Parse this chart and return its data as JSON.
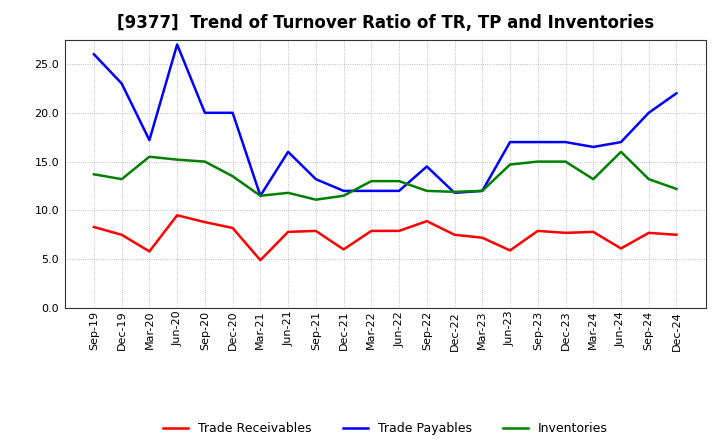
{
  "title": "[9377]  Trend of Turnover Ratio of TR, TP and Inventories",
  "x_labels": [
    "Sep-19",
    "Dec-19",
    "Mar-20",
    "Jun-20",
    "Sep-20",
    "Dec-20",
    "Mar-21",
    "Jun-21",
    "Sep-21",
    "Dec-21",
    "Mar-22",
    "Jun-22",
    "Sep-22",
    "Dec-22",
    "Mar-23",
    "Jun-23",
    "Sep-23",
    "Dec-23",
    "Mar-24",
    "Jun-24",
    "Sep-24",
    "Dec-24"
  ],
  "trade_receivables": [
    8.3,
    7.5,
    5.8,
    9.5,
    8.8,
    8.2,
    4.9,
    7.8,
    7.9,
    6.0,
    7.9,
    7.9,
    8.9,
    7.5,
    7.2,
    5.9,
    7.9,
    7.7,
    7.8,
    6.1,
    7.7,
    7.5
  ],
  "trade_payables": [
    26.0,
    23.0,
    17.2,
    27.0,
    20.0,
    20.0,
    11.5,
    16.0,
    13.2,
    12.0,
    12.0,
    12.0,
    14.5,
    11.8,
    12.0,
    17.0,
    17.0,
    17.0,
    16.5,
    17.0,
    20.0,
    22.0
  ],
  "inventories": [
    13.7,
    13.2,
    15.5,
    15.2,
    15.0,
    13.5,
    11.5,
    11.8,
    11.1,
    11.5,
    13.0,
    13.0,
    12.0,
    11.9,
    12.0,
    14.7,
    15.0,
    15.0,
    13.2,
    16.0,
    13.2,
    12.2
  ],
  "ylim": [
    0.0,
    27.5
  ],
  "yticks": [
    0.0,
    5.0,
    10.0,
    15.0,
    20.0,
    25.0
  ],
  "color_tr": "#ff0000",
  "color_tp": "#0000ff",
  "color_inv": "#008000",
  "background_color": "#ffffff",
  "plot_bg_color": "#ffffff",
  "grid_color": "#aaaaaa",
  "title_fontsize": 12,
  "tick_fontsize": 8,
  "legend_labels": [
    "Trade Receivables",
    "Trade Payables",
    "Inventories"
  ],
  "linewidth": 1.8
}
